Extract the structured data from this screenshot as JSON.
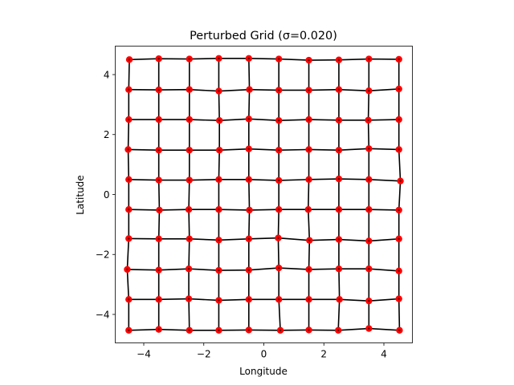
{
  "chart_data": {
    "type": "scatter",
    "title": "Perturbed Grid (σ=0.020)",
    "xlabel": "Longitude",
    "ylabel": "Latitude",
    "xlim": [
      -4.95,
      4.95
    ],
    "ylim": [
      -4.95,
      4.95
    ],
    "xticks": [
      -4,
      -2,
      0,
      2,
      4
    ],
    "yticks": [
      -4,
      -2,
      0,
      2,
      4
    ],
    "xtick_labels": [
      "−4",
      "−2",
      "0",
      "2",
      "4"
    ],
    "ytick_labels": [
      "−4",
      "−2",
      "0",
      "2",
      "4"
    ],
    "grid": false,
    "legend": "none",
    "point_color": "#ff0000",
    "line_color": "#000000",
    "x_grid": [
      -4.5,
      -3.5,
      -2.5,
      -1.5,
      -0.5,
      0.5,
      1.5,
      2.5,
      3.5,
      4.5
    ],
    "y_grid": [
      4.5,
      3.5,
      2.5,
      1.5,
      0.5,
      -0.5,
      -1.5,
      -2.5,
      -3.5,
      -4.5
    ],
    "points": [
      [
        [
          -4.48,
          4.5
        ],
        [
          -3.5,
          4.53
        ],
        [
          -2.48,
          4.52
        ],
        [
          -1.5,
          4.54
        ],
        [
          -0.5,
          4.54
        ],
        [
          0.5,
          4.52
        ],
        [
          1.5,
          4.48
        ],
        [
          2.5,
          4.49
        ],
        [
          3.5,
          4.52
        ],
        [
          4.5,
          4.51
        ]
      ],
      [
        [
          -4.5,
          3.5
        ],
        [
          -3.5,
          3.49
        ],
        [
          -2.48,
          3.5
        ],
        [
          -1.5,
          3.45
        ],
        [
          -0.48,
          3.5
        ],
        [
          0.5,
          3.48
        ],
        [
          1.5,
          3.48
        ],
        [
          2.5,
          3.5
        ],
        [
          3.5,
          3.46
        ],
        [
          4.5,
          3.52
        ]
      ],
      [
        [
          -4.5,
          2.5
        ],
        [
          -3.5,
          2.5
        ],
        [
          -2.48,
          2.5
        ],
        [
          -1.48,
          2.47
        ],
        [
          -0.5,
          2.52
        ],
        [
          0.5,
          2.47
        ],
        [
          1.5,
          2.5
        ],
        [
          2.5,
          2.48
        ],
        [
          3.48,
          2.48
        ],
        [
          4.5,
          2.5
        ]
      ],
      [
        [
          -4.52,
          1.5
        ],
        [
          -3.5,
          1.48
        ],
        [
          -2.48,
          1.48
        ],
        [
          -1.48,
          1.48
        ],
        [
          -0.5,
          1.52
        ],
        [
          0.5,
          1.48
        ],
        [
          1.5,
          1.5
        ],
        [
          2.5,
          1.48
        ],
        [
          3.5,
          1.53
        ],
        [
          4.5,
          1.5
        ]
      ],
      [
        [
          -4.5,
          0.5
        ],
        [
          -3.5,
          0.48
        ],
        [
          -2.48,
          0.48
        ],
        [
          -1.5,
          0.5
        ],
        [
          -0.5,
          0.5
        ],
        [
          0.5,
          0.47
        ],
        [
          1.5,
          0.5
        ],
        [
          2.5,
          0.52
        ],
        [
          3.5,
          0.5
        ],
        [
          4.55,
          0.45
        ]
      ],
      [
        [
          -4.5,
          -0.5
        ],
        [
          -3.48,
          -0.52
        ],
        [
          -2.5,
          -0.5
        ],
        [
          -1.5,
          -0.5
        ],
        [
          -0.48,
          -0.52
        ],
        [
          0.5,
          -0.5
        ],
        [
          1.48,
          -0.5
        ],
        [
          2.5,
          -0.5
        ],
        [
          3.5,
          -0.5
        ],
        [
          4.5,
          -0.52
        ]
      ],
      [
        [
          -4.5,
          -1.47
        ],
        [
          -3.5,
          -1.48
        ],
        [
          -2.48,
          -1.48
        ],
        [
          -1.5,
          -1.52
        ],
        [
          -0.5,
          -1.48
        ],
        [
          0.48,
          -1.45
        ],
        [
          1.52,
          -1.53
        ],
        [
          2.5,
          -1.5
        ],
        [
          3.5,
          -1.55
        ],
        [
          4.5,
          -1.48
        ]
      ],
      [
        [
          -4.55,
          -2.5
        ],
        [
          -3.5,
          -2.52
        ],
        [
          -2.5,
          -2.48
        ],
        [
          -1.5,
          -2.53
        ],
        [
          -0.5,
          -2.52
        ],
        [
          0.5,
          -2.45
        ],
        [
          1.5,
          -2.5
        ],
        [
          2.5,
          -2.48
        ],
        [
          3.5,
          -2.48
        ],
        [
          4.5,
          -2.55
        ]
      ],
      [
        [
          -4.5,
          -3.5
        ],
        [
          -3.5,
          -3.5
        ],
        [
          -2.5,
          -3.48
        ],
        [
          -1.5,
          -3.53
        ],
        [
          -0.5,
          -3.5
        ],
        [
          0.5,
          -3.5
        ],
        [
          1.5,
          -3.5
        ],
        [
          2.52,
          -3.5
        ],
        [
          3.5,
          -3.55
        ],
        [
          4.5,
          -3.48
        ]
      ],
      [
        [
          -4.5,
          -4.53
        ],
        [
          -3.5,
          -4.5
        ],
        [
          -2.48,
          -4.53
        ],
        [
          -1.5,
          -4.53
        ],
        [
          -0.5,
          -4.52
        ],
        [
          0.55,
          -4.53
        ],
        [
          1.5,
          -4.52
        ],
        [
          2.48,
          -4.53
        ],
        [
          3.5,
          -4.47
        ],
        [
          4.52,
          -4.53
        ]
      ]
    ]
  }
}
